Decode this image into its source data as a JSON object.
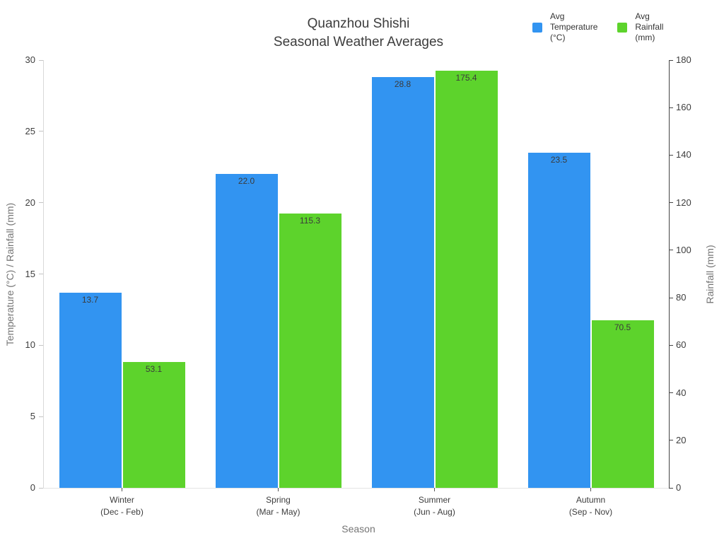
{
  "chart_data": {
    "type": "bar",
    "title": "Quanzhou Shishi",
    "subtitle": "Seasonal Weather Averages",
    "categories": [
      "Winter",
      "Spring",
      "Summer",
      "Autumn"
    ],
    "category_sublabels": [
      "(Dec - Feb)",
      "(Mar - May)",
      "(Jun - Aug)",
      "(Sep - Nov)"
    ],
    "series": [
      {
        "key": "temperature",
        "name": "Avg Temperature (°C)",
        "legend_lines": [
          "Avg",
          "Temperature",
          "(°C)"
        ],
        "color": "#3294F1",
        "axis": "left",
        "values": [
          13.7,
          22.0,
          28.8,
          23.5
        ],
        "value_labels": [
          "13.7",
          "22.0",
          "28.8",
          "23.5"
        ]
      },
      {
        "key": "rainfall",
        "name": "Avg Rainfall (mm)",
        "legend_lines": [
          "Avg",
          "Rainfall",
          "(mm)"
        ],
        "color": "#5DD32C",
        "axis": "right",
        "values": [
          53.1,
          115.3,
          175.4,
          70.5
        ],
        "value_labels": [
          "53.1",
          "115.3",
          "175.4",
          "70.5"
        ]
      }
    ],
    "xlabel": "Season",
    "ylabel_left": "Temperature (°C) / Rainfall (mm)",
    "ylabel_right": "Rainfall (mm)",
    "left_axis": {
      "min": 0,
      "max": 30,
      "ticks": [
        0,
        5,
        10,
        15,
        20,
        25,
        30
      ]
    },
    "right_axis": {
      "min": 0,
      "max": 180,
      "ticks": [
        0,
        20,
        40,
        60,
        80,
        100,
        120,
        140,
        160,
        180
      ]
    },
    "grid": false,
    "legend_position": "top-right",
    "bar_value_labels_inside_top": true
  }
}
